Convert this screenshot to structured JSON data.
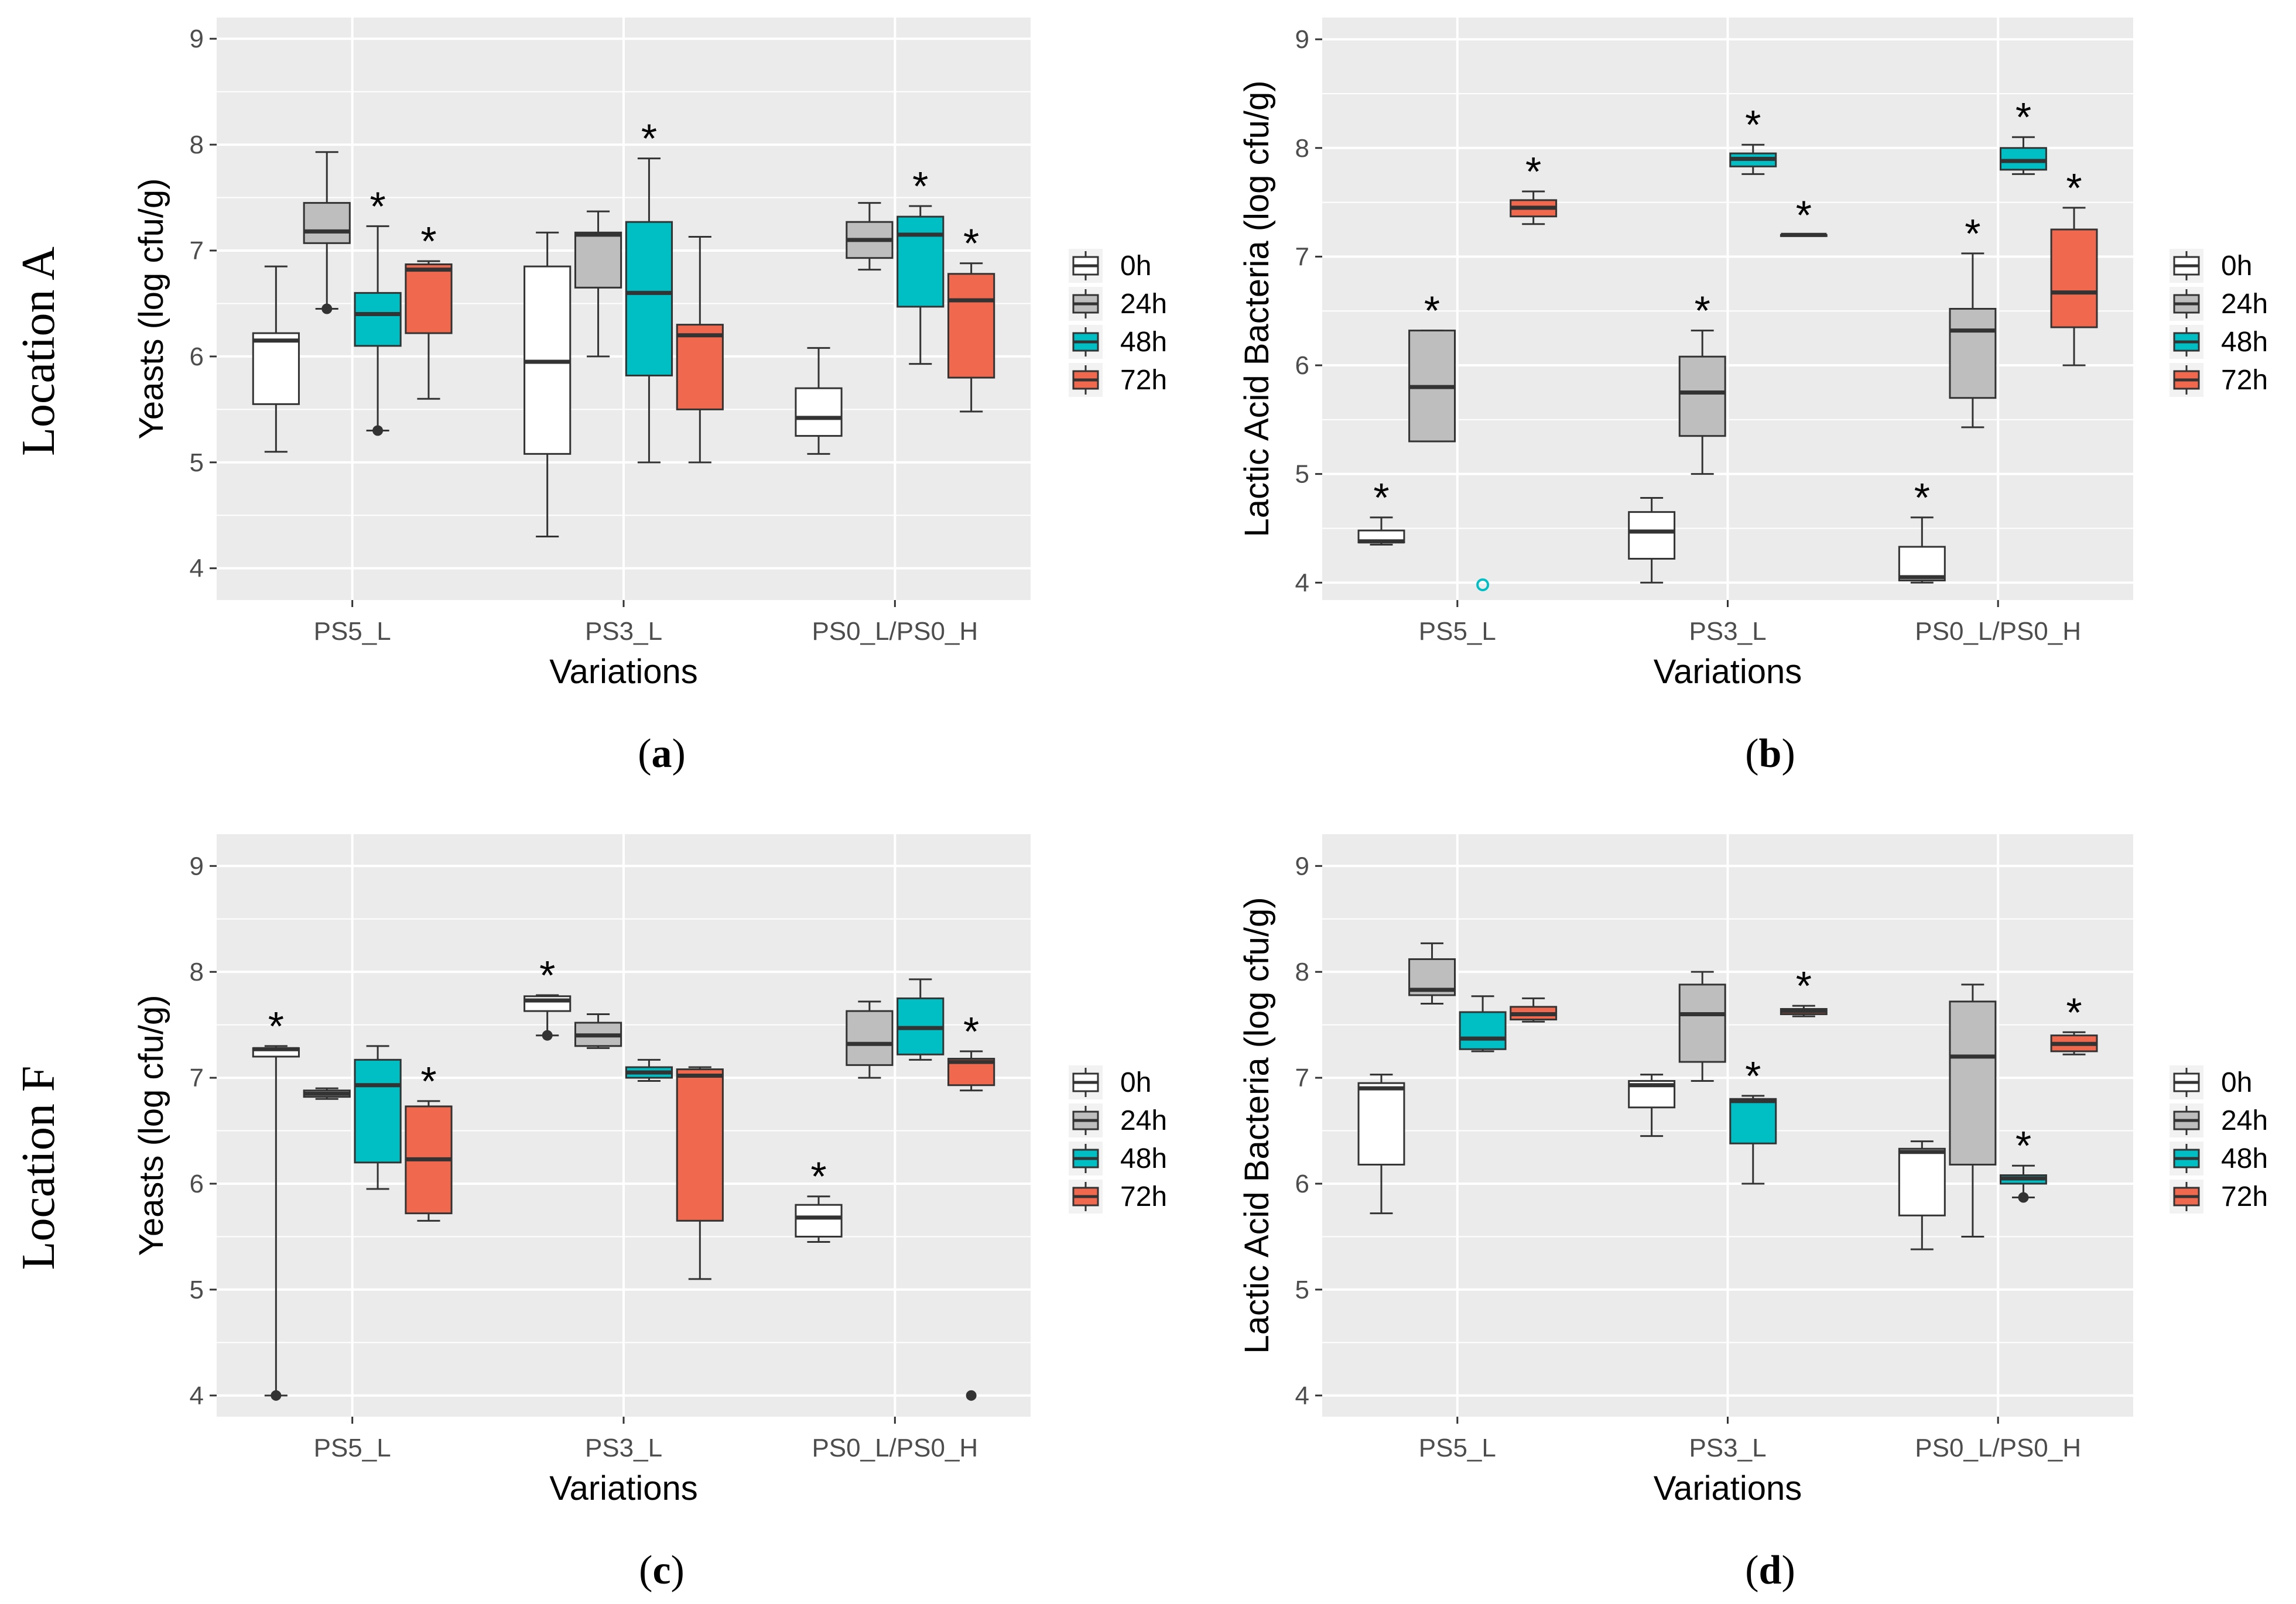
{
  "figure": {
    "row_labels": [
      "Location A",
      "Location F"
    ],
    "legend": {
      "title": "",
      "entries": [
        "0h",
        "24h",
        "48h",
        "72h"
      ]
    }
  },
  "colors": {
    "panel_bg": "#ebebeb",
    "grid": "#ffffff",
    "box_outline": "#333333",
    "series": [
      "#ffffff",
      "#bebebe",
      "#00bfc4",
      "#f0694f"
    ],
    "outlier_cyan": "#00bfc4"
  },
  "chart_data": [
    {
      "type": "boxplot",
      "caption": {
        "open": "(",
        "letter": "a",
        "close": ")"
      },
      "xlabel": "Variations",
      "ylabel": "Yeasts (log cfu/g)",
      "ylim": [
        3.7,
        9.2
      ],
      "yticks": [
        "4",
        "5",
        "6",
        "7",
        "8",
        "9"
      ],
      "categories": [
        "PS5_L",
        "PS3_L",
        "PS0_L/PS0_H"
      ],
      "series": [
        {
          "name": "0h",
          "boxes": [
            {
              "min": 5.1,
              "q1": 5.55,
              "median": 6.15,
              "q3": 6.22,
              "max": 6.85,
              "star": false,
              "outliers": []
            },
            {
              "min": 4.3,
              "q1": 5.08,
              "median": 5.95,
              "q3": 6.85,
              "max": 7.17,
              "star": false,
              "outliers": []
            },
            {
              "min": 5.08,
              "q1": 5.25,
              "median": 5.42,
              "q3": 5.7,
              "max": 6.08,
              "star": false,
              "outliers": []
            }
          ]
        },
        {
          "name": "24h",
          "boxes": [
            {
              "min": 6.45,
              "q1": 7.07,
              "median": 7.18,
              "q3": 7.45,
              "max": 7.93,
              "star": false,
              "outliers": [
                6.45
              ]
            },
            {
              "min": 6.0,
              "q1": 6.65,
              "median": 7.15,
              "q3": 7.17,
              "max": 7.37,
              "star": false,
              "outliers": []
            },
            {
              "min": 6.82,
              "q1": 6.93,
              "median": 7.1,
              "q3": 7.27,
              "max": 7.45,
              "star": false,
              "outliers": []
            }
          ]
        },
        {
          "name": "48h",
          "boxes": [
            {
              "min": 5.3,
              "q1": 6.1,
              "median": 6.4,
              "q3": 6.6,
              "max": 7.23,
              "star": true,
              "outliers": [
                5.3
              ]
            },
            {
              "min": 5.0,
              "q1": 5.82,
              "median": 6.6,
              "q3": 7.27,
              "max": 7.87,
              "star": true,
              "outliers": []
            },
            {
              "min": 5.93,
              "q1": 6.47,
              "median": 7.15,
              "q3": 7.32,
              "max": 7.42,
              "star": true,
              "outliers": []
            }
          ]
        },
        {
          "name": "72h",
          "boxes": [
            {
              "min": 5.6,
              "q1": 6.22,
              "median": 6.82,
              "q3": 6.87,
              "max": 6.9,
              "star": true,
              "outliers": []
            },
            {
              "min": 5.0,
              "q1": 5.5,
              "median": 6.2,
              "q3": 6.3,
              "max": 7.13,
              "star": false,
              "outliers": []
            },
            {
              "min": 5.48,
              "q1": 5.8,
              "median": 6.53,
              "q3": 6.78,
              "max": 6.88,
              "star": true,
              "outliers": []
            }
          ]
        }
      ]
    },
    {
      "type": "boxplot",
      "caption": {
        "open": "(",
        "letter": "b",
        "close": ")"
      },
      "xlabel": "Variations",
      "ylabel": "Lactic Acid Bacteria (log cfu/g)",
      "ylim": [
        3.84,
        9.2
      ],
      "yticks": [
        "4",
        "5",
        "6",
        "7",
        "8",
        "9"
      ],
      "categories": [
        "PS5_L",
        "PS3_L",
        "PS0_L/PS0_H"
      ],
      "series": [
        {
          "name": "0h",
          "boxes": [
            {
              "min": 4.35,
              "q1": 4.37,
              "median": 4.38,
              "q3": 4.48,
              "max": 4.6,
              "star": true,
              "outliers": []
            },
            {
              "min": 4.0,
              "q1": 4.22,
              "median": 4.47,
              "q3": 4.65,
              "max": 4.78,
              "star": false,
              "outliers": []
            },
            {
              "min": 4.0,
              "q1": 4.02,
              "median": 4.05,
              "q3": 4.33,
              "max": 4.6,
              "star": true,
              "outliers": []
            }
          ]
        },
        {
          "name": "24h",
          "boxes": [
            {
              "min": 5.3,
              "q1": 5.3,
              "median": 5.8,
              "q3": 6.32,
              "max": 6.32,
              "star": true,
              "outliers": []
            },
            {
              "min": 5.0,
              "q1": 5.35,
              "median": 5.75,
              "q3": 6.08,
              "max": 6.32,
              "star": true,
              "outliers": []
            },
            {
              "min": 5.43,
              "q1": 5.7,
              "median": 6.32,
              "q3": 6.52,
              "max": 7.03,
              "star": true,
              "outliers": []
            }
          ]
        },
        {
          "name": "48h",
          "boxes": [
            {
              "min": 4.0,
              "q1": 4.0,
              "median": 4.0,
              "q3": 4.0,
              "max": 4.0,
              "star": false,
              "outliers": [
                3.98
              ],
              "hollow_outlier": true
            },
            {
              "min": 7.76,
              "q1": 7.83,
              "median": 7.9,
              "q3": 7.95,
              "max": 8.03,
              "star": true,
              "outliers": []
            },
            {
              "min": 7.76,
              "q1": 7.8,
              "median": 7.88,
              "q3": 8.0,
              "max": 8.1,
              "star": true,
              "outliers": []
            }
          ]
        },
        {
          "name": "72h",
          "boxes": [
            {
              "min": 7.3,
              "q1": 7.37,
              "median": 7.45,
              "q3": 7.52,
              "max": 7.6,
              "star": true,
              "outliers": []
            },
            {
              "min": 7.2,
              "q1": 7.2,
              "median": 7.2,
              "q3": 7.2,
              "max": 7.2,
              "star": true,
              "outliers": []
            },
            {
              "min": 6.0,
              "q1": 6.35,
              "median": 6.67,
              "q3": 7.25,
              "max": 7.45,
              "star": true,
              "outliers": []
            }
          ]
        }
      ]
    },
    {
      "type": "boxplot",
      "caption": {
        "open": "(",
        "letter": "c",
        "close": ")"
      },
      "xlabel": "Variations",
      "ylabel": "Yeasts (log cfu/g)",
      "ylim": [
        3.8,
        9.3
      ],
      "yticks": [
        "4",
        "5",
        "6",
        "7",
        "8",
        "9"
      ],
      "categories": [
        "PS5_L",
        "PS3_L",
        "PS0_L/PS0_H"
      ],
      "series": [
        {
          "name": "0h",
          "boxes": [
            {
              "min": 4.0,
              "q1": 7.2,
              "median": 7.27,
              "q3": 7.28,
              "max": 7.3,
              "star": true,
              "outliers": [
                4.0
              ]
            },
            {
              "min": 7.4,
              "q1": 7.63,
              "median": 7.73,
              "q3": 7.77,
              "max": 7.78,
              "star": true,
              "outliers": [
                7.4
              ]
            },
            {
              "min": 5.45,
              "q1": 5.5,
              "median": 5.68,
              "q3": 5.8,
              "max": 5.88,
              "star": true,
              "outliers": []
            }
          ]
        },
        {
          "name": "24h",
          "boxes": [
            {
              "min": 6.8,
              "q1": 6.82,
              "median": 6.85,
              "q3": 6.88,
              "max": 6.9,
              "star": false,
              "outliers": []
            },
            {
              "min": 7.28,
              "q1": 7.3,
              "median": 7.4,
              "q3": 7.52,
              "max": 7.6,
              "star": false,
              "outliers": []
            },
            {
              "min": 7.0,
              "q1": 7.12,
              "median": 7.32,
              "q3": 7.63,
              "max": 7.72,
              "star": false,
              "outliers": []
            }
          ]
        },
        {
          "name": "48h",
          "boxes": [
            {
              "min": 5.95,
              "q1": 6.2,
              "median": 6.93,
              "q3": 7.17,
              "max": 7.3,
              "star": false,
              "outliers": []
            },
            {
              "min": 6.97,
              "q1": 7.0,
              "median": 7.05,
              "q3": 7.1,
              "max": 7.17,
              "star": false,
              "outliers": []
            },
            {
              "min": 7.17,
              "q1": 7.22,
              "median": 7.47,
              "q3": 7.75,
              "max": 7.93,
              "star": false,
              "outliers": []
            }
          ]
        },
        {
          "name": "72h",
          "boxes": [
            {
              "min": 5.65,
              "q1": 5.72,
              "median": 6.23,
              "q3": 6.73,
              "max": 6.78,
              "star": true,
              "outliers": []
            },
            {
              "min": 5.1,
              "q1": 5.65,
              "median": 7.02,
              "q3": 7.08,
              "max": 7.1,
              "star": false,
              "outliers": []
            },
            {
              "min": 6.88,
              "q1": 6.93,
              "median": 7.15,
              "q3": 7.18,
              "max": 7.25,
              "star": true,
              "outliers": [
                4.0
              ]
            }
          ]
        }
      ]
    },
    {
      "type": "boxplot",
      "caption": {
        "open": "(",
        "letter": "d",
        "close": ")"
      },
      "xlabel": "Variations",
      "ylabel": "Lactic Acid Bacteria (log cfu/g)",
      "ylim": [
        3.8,
        9.3
      ],
      "yticks": [
        "4",
        "5",
        "6",
        "7",
        "8",
        "9"
      ],
      "categories": [
        "PS5_L",
        "PS3_L",
        "PS0_L/PS0_H"
      ],
      "series": [
        {
          "name": "0h",
          "boxes": [
            {
              "min": 5.72,
              "q1": 6.18,
              "median": 6.9,
              "q3": 6.95,
              "max": 7.03,
              "star": false,
              "outliers": []
            },
            {
              "min": 6.45,
              "q1": 6.72,
              "median": 6.93,
              "q3": 6.97,
              "max": 7.03,
              "star": false,
              "outliers": []
            },
            {
              "min": 5.38,
              "q1": 5.7,
              "median": 6.3,
              "q3": 6.33,
              "max": 6.4,
              "star": false,
              "outliers": []
            }
          ]
        },
        {
          "name": "24h",
          "boxes": [
            {
              "min": 7.7,
              "q1": 7.78,
              "median": 7.83,
              "q3": 8.12,
              "max": 8.27,
              "star": false,
              "outliers": []
            },
            {
              "min": 6.97,
              "q1": 7.15,
              "median": 7.6,
              "q3": 7.88,
              "max": 8.0,
              "star": false,
              "outliers": []
            },
            {
              "min": 5.5,
              "q1": 6.18,
              "median": 7.2,
              "q3": 7.72,
              "max": 7.88,
              "star": false,
              "outliers": []
            }
          ]
        },
        {
          "name": "48h",
          "boxes": [
            {
              "min": 7.25,
              "q1": 7.27,
              "median": 7.37,
              "q3": 7.62,
              "max": 7.77,
              "star": false,
              "outliers": []
            },
            {
              "min": 6.0,
              "q1": 6.38,
              "median": 6.78,
              "q3": 6.8,
              "max": 6.83,
              "star": true,
              "outliers": []
            },
            {
              "min": 5.87,
              "q1": 6.0,
              "median": 6.05,
              "q3": 6.08,
              "max": 6.17,
              "star": true,
              "outliers": [
                5.87
              ]
            }
          ]
        },
        {
          "name": "72h",
          "boxes": [
            {
              "min": 7.53,
              "q1": 7.55,
              "median": 7.6,
              "q3": 7.67,
              "max": 7.75,
              "star": false,
              "outliers": []
            },
            {
              "min": 7.58,
              "q1": 7.6,
              "median": 7.63,
              "q3": 7.65,
              "max": 7.68,
              "star": true,
              "outliers": []
            },
            {
              "min": 7.22,
              "q1": 7.25,
              "median": 7.32,
              "q3": 7.4,
              "max": 7.43,
              "star": true,
              "outliers": []
            }
          ]
        }
      ]
    }
  ]
}
